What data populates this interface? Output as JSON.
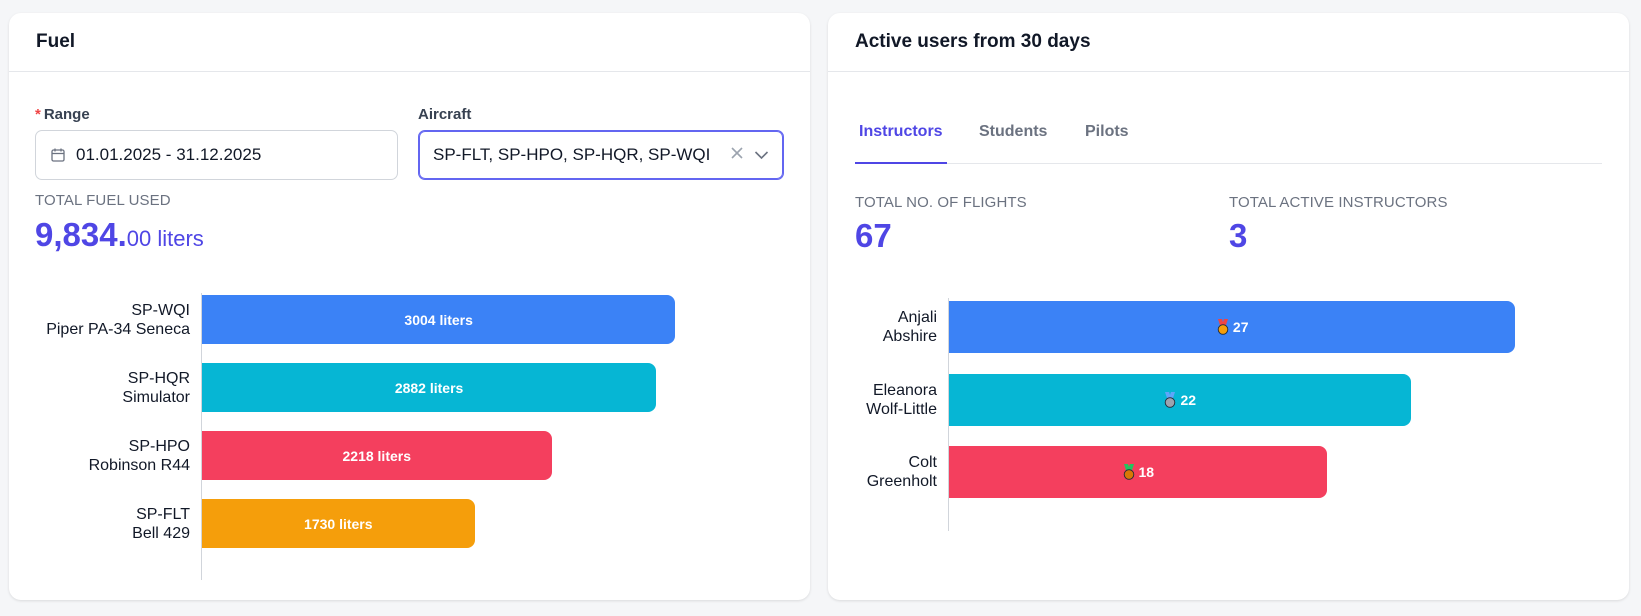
{
  "fuel": {
    "title": "Fuel",
    "range": {
      "required_mark": "*",
      "label": "Range",
      "value": "01.01.2025 - 31.12.2025"
    },
    "aircraft": {
      "label": "Aircraft",
      "value": "SP-FLT, SP-HPO, SP-HQR, SP-WQI"
    },
    "total_label": "TOTAL FUEL USED",
    "total_int": "9,834.",
    "total_dec": "00 liters",
    "chart_data": {
      "type": "bar",
      "orientation": "horizontal",
      "categories": [
        [
          "SP-WQI",
          "Piper PA-34 Seneca"
        ],
        [
          "SP-HQR",
          "Simulator"
        ],
        [
          "SP-HPO",
          "Robinson R44"
        ],
        [
          "SP-FLT",
          "Bell 429"
        ]
      ],
      "values": [
        3004,
        2882,
        2218,
        1730
      ],
      "value_labels": [
        "3004 liters",
        "2882 liters",
        "2218 liters",
        "1730 liters"
      ],
      "colors": [
        "#3b82f6",
        "#06b6d4",
        "#f43f5e",
        "#f59e0b"
      ],
      "xlim": [
        0,
        3300
      ]
    }
  },
  "users": {
    "title": "Active users from 30 days",
    "tabs": [
      {
        "label": "Instructors",
        "active": true
      },
      {
        "label": "Students",
        "active": false
      },
      {
        "label": "Pilots",
        "active": false
      }
    ],
    "stats": [
      {
        "label": "TOTAL NO. OF FLIGHTS",
        "value": "67"
      },
      {
        "label": "TOTAL ACTIVE INSTRUCTORS",
        "value": "3"
      }
    ],
    "chart_data": {
      "type": "bar",
      "orientation": "horizontal",
      "categories": [
        [
          "Anjali",
          "Abshire"
        ],
        [
          "Eleanora",
          "Wolf-Little"
        ],
        [
          "Colt",
          "Greenholt"
        ]
      ],
      "values": [
        27,
        22,
        18
      ],
      "value_labels": [
        "27",
        "22",
        "18"
      ],
      "medals": [
        "gold-medal-icon",
        "silver-medal-icon",
        "bronze-medal-icon"
      ],
      "colors": [
        "#3b82f6",
        "#06b6d4",
        "#f43f5e"
      ],
      "xlim": [
        0,
        28.6
      ]
    }
  }
}
